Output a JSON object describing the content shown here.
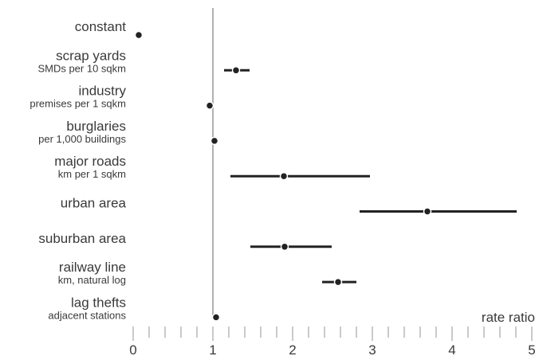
{
  "chart_data": {
    "type": "forest",
    "xlabel": "rate ratio",
    "xlim": [
      0,
      5
    ],
    "reference_line": 1,
    "x_major_ticks": [
      0,
      1,
      2,
      3,
      4,
      5
    ],
    "x_minor_step": 0.2,
    "colors": {
      "point": "#222222",
      "reference": "#b0b0b0",
      "ticks": "#b8b8b8",
      "text": "#3a3a3a"
    },
    "rows": [
      {
        "label": "constant",
        "sublabel": "",
        "estimate": 0.07,
        "ci": null
      },
      {
        "label": "scrap yards",
        "sublabel": "SMDs per 10 sqkm",
        "estimate": 1.29,
        "ci": [
          1.14,
          1.46
        ]
      },
      {
        "label": "industry",
        "sublabel": "premises per 1 sqkm",
        "estimate": 0.96,
        "ci": null
      },
      {
        "label": "burglaries",
        "sublabel": "per 1,000 buildings",
        "estimate": 1.02,
        "ci": null
      },
      {
        "label": "major roads",
        "sublabel": "km per 1 sqkm",
        "estimate": 1.89,
        "ci": [
          1.22,
          2.97
        ]
      },
      {
        "label": "urban area",
        "sublabel": "",
        "estimate": 3.69,
        "ci": [
          2.84,
          4.81
        ]
      },
      {
        "label": "suburban area",
        "sublabel": "",
        "estimate": 1.9,
        "ci": [
          1.47,
          2.49
        ]
      },
      {
        "label": "railway line",
        "sublabel": "km, natural log",
        "estimate": 2.57,
        "ci": [
          2.37,
          2.8
        ]
      },
      {
        "label": "lag thefts",
        "sublabel": "adjacent stations",
        "estimate": 1.04,
        "ci": null
      }
    ]
  }
}
